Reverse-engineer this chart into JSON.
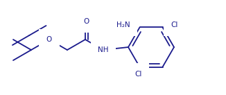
{
  "line_color": "#1a1a8c",
  "background": "#ffffff",
  "figsize": [
    3.26,
    1.37
  ],
  "dpi": 100,
  "lw": 1.3,
  "font_size": 7.5,
  "xlim": [
    0,
    326
  ],
  "ylim": [
    0,
    137
  ]
}
